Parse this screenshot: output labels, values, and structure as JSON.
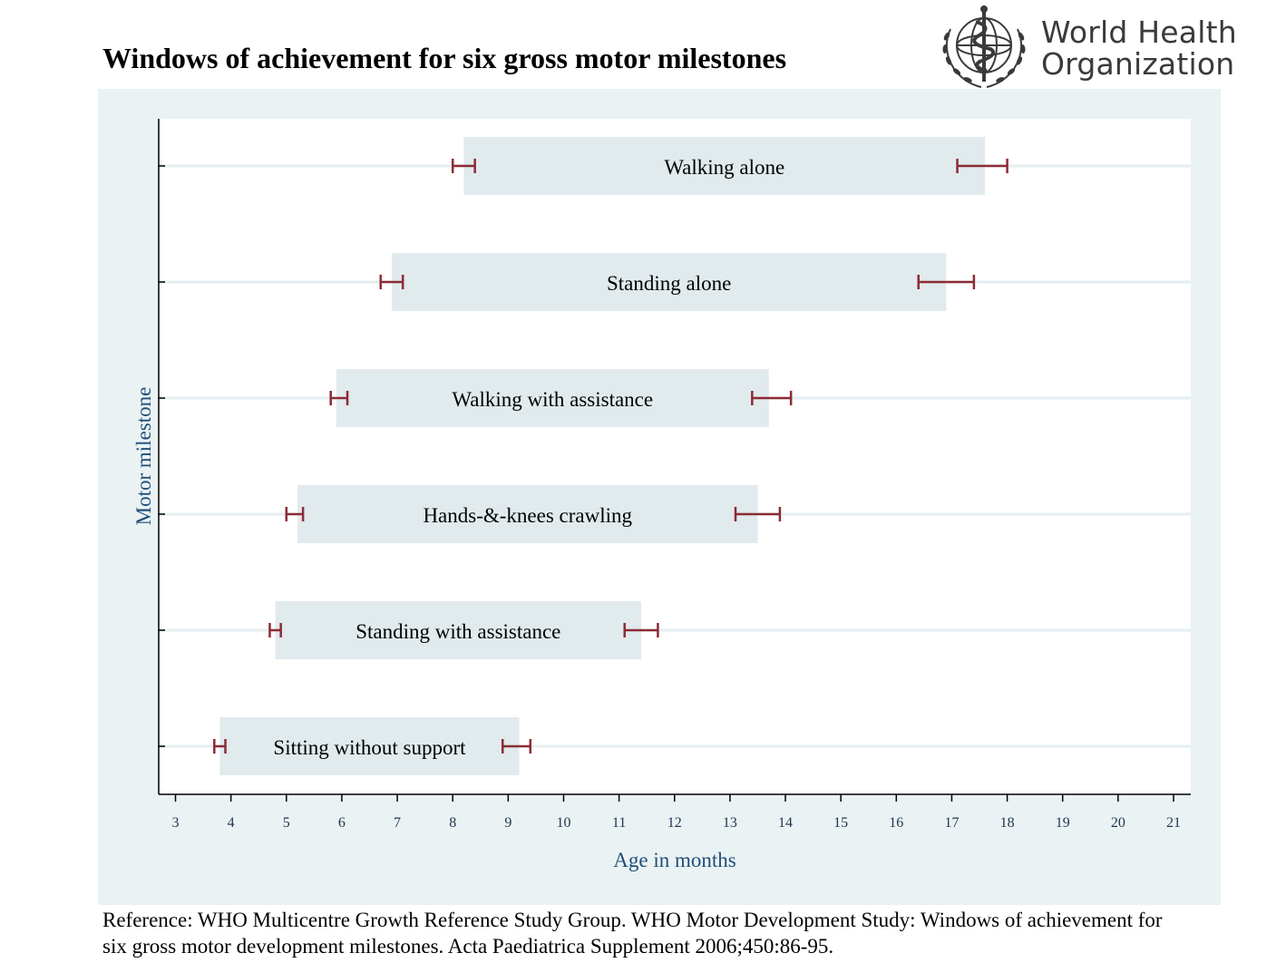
{
  "title": "Windows of achievement for six gross motor milestones",
  "organization": {
    "line1": "World Health",
    "line2": "Organization",
    "logo": "who-emblem-icon"
  },
  "reference": "Reference: WHO Multicentre Growth Reference Study Group. WHO Motor Development Study: Windows of achievement for six gross motor development milestones. Acta Paediatrica Supplement 2006;450:86-95.",
  "colors": {
    "panel_background": "#eaf2f3",
    "plot_background": "#ffffff",
    "bar_fill": "#e1eaed",
    "gridline": "#e4eef0",
    "error_bar": "#8c2b35",
    "axis_title": "#1f4e79"
  },
  "chart_data": {
    "type": "bar",
    "orientation": "horizontal",
    "title": "Windows of achievement for six gross motor milestones",
    "xlabel": "Age in months",
    "ylabel": "Motor milestone",
    "xlim": [
      2.7,
      21.3
    ],
    "xticks": [
      3,
      4,
      5,
      6,
      7,
      8,
      9,
      10,
      11,
      12,
      13,
      14,
      15,
      16,
      17,
      18,
      19,
      20,
      21
    ],
    "grid": "horizontal",
    "legend": "none",
    "categories": [
      "Walking alone",
      "Standing alone",
      "Walking with assistance",
      "Hands-&-knees crawling",
      "Standing with assistance",
      "Sitting without support"
    ],
    "windows": [
      {
        "label": "Walking alone",
        "start": 8.2,
        "end": 17.6,
        "start_ci": [
          8.0,
          8.4
        ],
        "end_ci": [
          17.1,
          18.0
        ]
      },
      {
        "label": "Standing alone",
        "start": 6.9,
        "end": 16.9,
        "start_ci": [
          6.7,
          7.1
        ],
        "end_ci": [
          16.4,
          17.4
        ]
      },
      {
        "label": "Walking with assistance",
        "start": 5.9,
        "end": 13.7,
        "start_ci": [
          5.8,
          6.1
        ],
        "end_ci": [
          13.4,
          14.1
        ]
      },
      {
        "label": "Hands-&-knees crawling",
        "start": 5.2,
        "end": 13.5,
        "start_ci": [
          5.0,
          5.3
        ],
        "end_ci": [
          13.1,
          13.9
        ]
      },
      {
        "label": "Standing with assistance",
        "start": 4.8,
        "end": 11.4,
        "start_ci": [
          4.7,
          4.9
        ],
        "end_ci": [
          11.1,
          11.7
        ]
      },
      {
        "label": "Sitting without support",
        "start": 3.8,
        "end": 9.2,
        "start_ci": [
          3.7,
          3.9
        ],
        "end_ci": [
          8.9,
          9.4
        ]
      }
    ]
  }
}
